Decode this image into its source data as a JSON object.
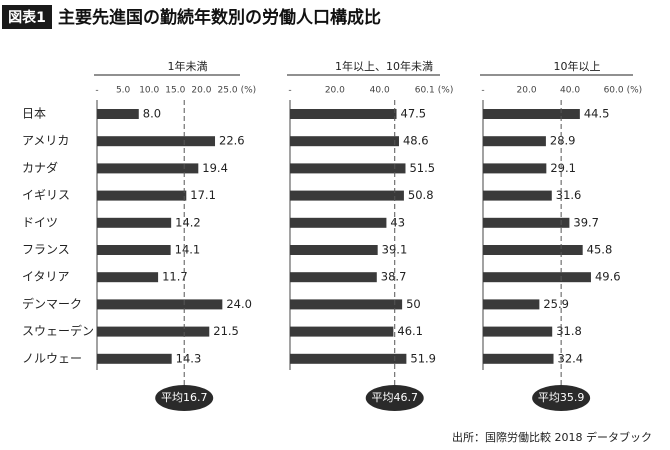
{
  "chart_data": {
    "type": "bar",
    "badge": "図表1",
    "title": "主要先進国の勤続年数別の労働人口構成比",
    "source": "出所：国際労働比較 2018 データブック",
    "categories": [
      "日本",
      "アメリカ",
      "カナダ",
      "イギリス",
      "ドイツ",
      "フランス",
      "イタリア",
      "デンマーク",
      "スウェーデン",
      "ノルウェー"
    ],
    "color": "#3a3a3a",
    "panels": [
      {
        "title": "1年未満",
        "values": [
          8.0,
          22.6,
          19.4,
          17.1,
          14.2,
          14.1,
          11.7,
          24.0,
          21.5,
          14.3
        ],
        "value_labels": [
          "8.0",
          "22.6",
          "19.4",
          "17.1",
          "14.2",
          "14.1",
          "11.7",
          "24.0",
          "21.5",
          "14.3"
        ],
        "xlim": [
          0,
          27
        ],
        "xticks": [
          {
            "value": 0,
            "label": "-"
          },
          {
            "value": 5,
            "label": "5.0"
          },
          {
            "value": 10,
            "label": "10.0"
          },
          {
            "value": 15,
            "label": "15.0"
          },
          {
            "value": 20,
            "label": "20.0"
          },
          {
            "value": 25,
            "label": "25.0"
          }
        ],
        "unit": "(%)",
        "average": 16.7,
        "average_label": "平均16.7"
      },
      {
        "title": "1年以上、10年未満",
        "values": [
          47.5,
          48.6,
          51.5,
          50.8,
          43,
          39.1,
          38.7,
          50,
          46.1,
          51.9
        ],
        "value_labels": [
          "47.5",
          "48.6",
          "51.5",
          "50.8",
          "43",
          "39.1",
          "38.7",
          "50",
          "46.1",
          "51.9"
        ],
        "xlim": [
          0,
          66
        ],
        "xticks": [
          {
            "value": 0,
            "label": "-"
          },
          {
            "value": 20,
            "label": "20.0"
          },
          {
            "value": 40,
            "label": "40.0"
          },
          60.1
        ],
        "unit": "(%)",
        "average": 46.7,
        "average_label": "平均46.7"
      },
      {
        "title": "10年以上",
        "values": [
          44.5,
          28.9,
          29.1,
          31.6,
          39.7,
          45.8,
          49.6,
          25.9,
          31.8,
          32.4
        ],
        "value_labels": [
          "44.5",
          "28.9",
          "29.1",
          "31.6",
          "39.7",
          "45.8",
          "49.6",
          "25.9",
          "31.8",
          "32.4"
        ],
        "xlim": [
          0,
          68
        ],
        "xticks": [
          {
            "value": 0,
            "label": "-"
          },
          {
            "value": 20,
            "label": "20.0"
          },
          {
            "value": 40,
            "label": "40.0"
          },
          {
            "value": 60,
            "label": "60.0"
          }
        ],
        "unit": "(%)",
        "average": 35.9,
        "average_label": "平均35.9"
      }
    ]
  }
}
